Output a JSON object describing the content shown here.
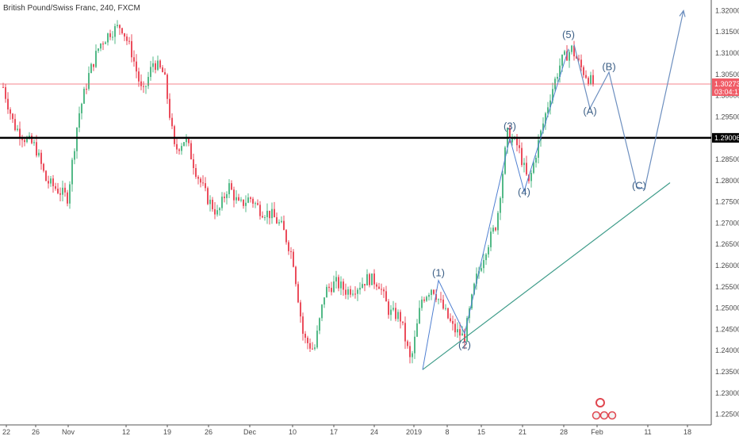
{
  "header": {
    "title": "British Pound/Swiss Franc, 240, FXCM"
  },
  "chart_data": {
    "type": "candlestick",
    "symbol": "British Pound/Swiss Franc",
    "interval": "240",
    "source": "FXCM",
    "ylim": [
      1.2225,
      1.3225
    ],
    "y_ticks": [
      "1.32000",
      "1.31500",
      "1.31000",
      "1.30500",
      "1.30000",
      "1.29500",
      "1.29000",
      "1.28500",
      "1.28000",
      "1.27500",
      "1.27000",
      "1.26500",
      "1.26000",
      "1.25500",
      "1.25000",
      "1.24500",
      "1.24000",
      "1.23500",
      "1.23000",
      "1.22500"
    ],
    "x_ticks": [
      "22",
      "26",
      "Nov",
      "12",
      "19",
      "26",
      "Dec",
      "10",
      "17",
      "24",
      "2019",
      "8",
      "15",
      "21",
      "28",
      "Feb",
      "11",
      "18"
    ],
    "last_price": {
      "value": "1.30273",
      "countdown": "03:04:17",
      "color": "#f05b66"
    },
    "support_level": {
      "value": "1.29006",
      "y": 1.29006,
      "color": "#000000"
    },
    "candle_colors": {
      "up": "#53b987",
      "down": "#eb4d5c"
    },
    "price_path": [
      [
        "22",
        1.302
      ],
      [
        "",
        1.293
      ],
      [
        "",
        1.29
      ],
      [
        "26",
        1.288
      ],
      [
        "",
        1.28
      ],
      [
        "",
        1.278
      ],
      [
        "",
        1.276
      ],
      [
        "Nov",
        1.295
      ],
      [
        "",
        1.305
      ],
      [
        "",
        1.312
      ],
      [
        "",
        1.315
      ],
      [
        "",
        1.3165
      ],
      [
        "",
        1.31
      ],
      [
        "12",
        1.3
      ],
      [
        "",
        1.308
      ],
      [
        "",
        1.305
      ],
      [
        "",
        1.287
      ],
      [
        "19",
        1.29
      ],
      [
        "",
        1.282
      ],
      [
        "",
        1.276
      ],
      [
        "",
        1.272
      ],
      [
        "26",
        1.279
      ],
      [
        "",
        1.274
      ],
      [
        "",
        1.276
      ],
      [
        "Dec",
        1.273
      ],
      [
        "",
        1.272
      ],
      [
        "",
        1.269
      ],
      [
        "",
        1.262
      ],
      [
        "10",
        1.243
      ],
      [
        "",
        1.24
      ],
      [
        "",
        1.254
      ],
      [
        "17",
        1.256
      ],
      [
        "",
        1.254
      ],
      [
        "",
        1.255
      ],
      [
        "24",
        1.257
      ],
      [
        "",
        1.256
      ],
      [
        "",
        1.249
      ],
      [
        "",
        1.248
      ],
      [
        "2019",
        1.237
      ],
      [
        "",
        1.252
      ],
      [
        "",
        1.255
      ],
      [
        "8",
        1.25
      ],
      [
        "",
        1.245
      ],
      [
        "",
        1.243
      ],
      [
        "15",
        1.256
      ],
      [
        "",
        1.264
      ],
      [
        "",
        1.27
      ],
      [
        "21",
        1.291
      ],
      [
        "",
        1.288
      ],
      [
        "",
        1.279
      ],
      [
        "",
        1.29
      ],
      [
        "28",
        1.3
      ],
      [
        "",
        1.308
      ],
      [
        "",
        1.311
      ],
      [
        "",
        1.306
      ],
      [
        "Feb",
        1.3027
      ]
    ],
    "wave_labels": [
      {
        "text": "(1)",
        "x": "Jan 6",
        "y": 1.2575
      },
      {
        "text": "(2)",
        "x": "Jan 11",
        "y": 1.2405
      },
      {
        "text": "(3)",
        "x": "Jan 20",
        "y": 1.292
      },
      {
        "text": "(4)",
        "x": "Jan 22",
        "y": 1.2765
      },
      {
        "text": "(5)",
        "x": "Jan 29",
        "y": 1.3135
      },
      {
        "text": "(A)",
        "x": "Jan 31",
        "y": 1.2955
      },
      {
        "text": "(B)",
        "x": "Feb 3",
        "y": 1.306
      },
      {
        "text": "(C)",
        "x": "Feb 8",
        "y": 1.278
      }
    ],
    "projection_path": [
      [
        "Jan 30",
        1.312
      ],
      [
        "Jan 31",
        1.297
      ],
      [
        "Feb 3",
        1.3055
      ],
      [
        "Feb 7",
        1.2785
      ],
      [
        "Feb 9",
        1.278
      ],
      [
        "Feb 14",
        1.32
      ]
    ],
    "trendline": {
      "from": [
        "Jan 2",
        1.2355
      ],
      "to": [
        "Feb 18",
        1.2795
      ],
      "color": "#3f9c8a"
    }
  }
}
